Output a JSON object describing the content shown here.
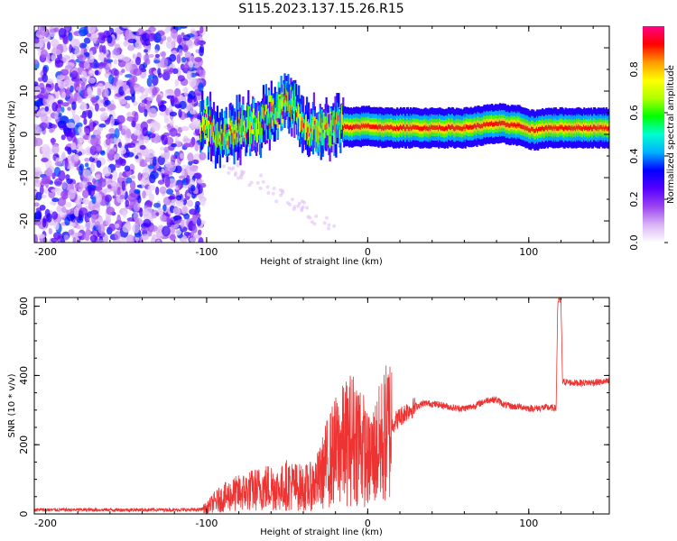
{
  "title": "S115.2023.137.15.26.R15",
  "chart_data": [
    {
      "type": "heatmap",
      "xlabel": "Height of straight line (km)",
      "ylabel": "Frequency (Hz)",
      "xlim": [
        -207,
        150
      ],
      "ylim": [
        -25,
        25
      ],
      "xticks": [
        -200,
        -100,
        0,
        100
      ],
      "yticks": [
        -20,
        -10,
        0,
        10,
        20
      ],
      "colorbar": {
        "label": "Normalized spectral amplitude",
        "range": [
          0,
          1
        ],
        "ticks": [
          0.0,
          0.2,
          0.4,
          0.6,
          0.8
        ],
        "colors": [
          "#ffffff",
          "#d9b3f5",
          "#9b44f0",
          "#5500ff",
          "#0000ff",
          "#00b0ff",
          "#00ffd0",
          "#00ff00",
          "#b0ff00",
          "#ffff00",
          "#ff9900",
          "#ff0000",
          "#ff0088"
        ]
      },
      "ridge": {
        "x": [
          -105,
          -95,
          -85,
          -75,
          -65,
          -55,
          -50,
          -45,
          -40,
          -35,
          -30,
          -20,
          -10,
          0,
          10,
          20,
          40,
          60,
          80,
          95,
          100,
          105,
          110,
          120,
          130,
          150
        ],
        "frequency": [
          3,
          1,
          0,
          2,
          3,
          6,
          7,
          5,
          3,
          1,
          1,
          2,
          1.5,
          2,
          1.5,
          1.5,
          1.5,
          1.5,
          2.5,
          2,
          1,
          1,
          1.5,
          1.5,
          1.5,
          1.5
        ]
      },
      "noise_region": {
        "x_range": [
          -207,
          -102
        ],
        "frequency_range": [
          -25,
          25
        ]
      }
    },
    {
      "type": "line",
      "xlabel": "Height of straight line (km)",
      "ylabel": "SNR (10 * v/v)",
      "xlim": [
        -207,
        150
      ],
      "ylim": [
        0,
        625
      ],
      "xticks": [
        -200,
        -100,
        0,
        100
      ],
      "yticks": [
        0,
        200,
        400,
        600
      ],
      "color": "#ee3333",
      "series": [
        {
          "x": [
            -207,
            -150,
            -105,
            -100,
            -95,
            -90,
            -85,
            -80,
            -75,
            -70,
            -65,
            -60,
            -55,
            -50,
            -45,
            -40,
            -35,
            -30,
            -25,
            -20,
            -15,
            -10,
            -5,
            0,
            5,
            10,
            15,
            20,
            25,
            30,
            35,
            40,
            45,
            50,
            55,
            60,
            65,
            70,
            75,
            80,
            85,
            90,
            95,
            100,
            105,
            110,
            117,
            118,
            119,
            120,
            121,
            122,
            125,
            130,
            140,
            150
          ],
          "y": [
            12,
            12,
            12,
            18,
            35,
            45,
            55,
            60,
            65,
            70,
            75,
            80,
            70,
            85,
            80,
            75,
            80,
            100,
            150,
            180,
            200,
            220,
            220,
            150,
            180,
            220,
            260,
            280,
            300,
            310,
            320,
            318,
            315,
            310,
            305,
            305,
            310,
            320,
            330,
            330,
            315,
            310,
            310,
            305,
            305,
            308,
            305,
            610,
            620,
            610,
            380,
            382,
            380,
            378,
            380,
            382
          ]
        }
      ]
    }
  ]
}
